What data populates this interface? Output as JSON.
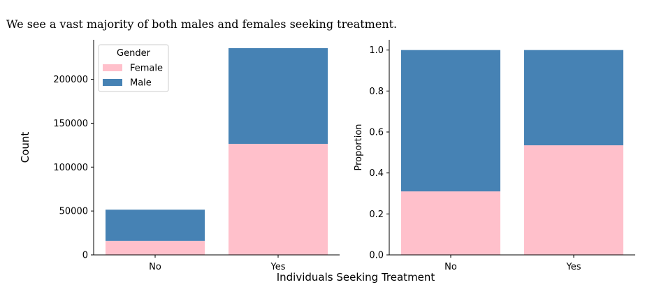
{
  "subtitle": "We see a vast majority of both males and females seeking treatment.",
  "shared_xlabel": "Individuals Seeking Treatment",
  "colors": {
    "Female": "#ffc0cb",
    "Male": "#4682b4"
  },
  "chart_data": [
    {
      "type": "bar",
      "stacked": true,
      "categories": [
        "No",
        "Yes"
      ],
      "series": [
        {
          "name": "Female",
          "values": [
            16000,
            126500
          ]
        },
        {
          "name": "Male",
          "values": [
            35500,
            109000
          ]
        }
      ],
      "ylabel": "Count",
      "ylim": [
        0,
        245000
      ],
      "yticks": [
        0,
        50000,
        100000,
        150000,
        200000
      ],
      "legend": {
        "title": "Gender",
        "placement": "top-left"
      },
      "grid": false
    },
    {
      "type": "bar",
      "stacked": true,
      "categories": [
        "No",
        "Yes"
      ],
      "series": [
        {
          "name": "Female",
          "values": [
            0.31,
            0.535
          ]
        },
        {
          "name": "Male",
          "values": [
            0.69,
            0.465
          ]
        }
      ],
      "ylabel": "Proportion",
      "ylim": [
        0,
        1.05
      ],
      "yticks": [
        0.0,
        0.2,
        0.4,
        0.6,
        0.8,
        1.0
      ],
      "grid": false
    }
  ]
}
